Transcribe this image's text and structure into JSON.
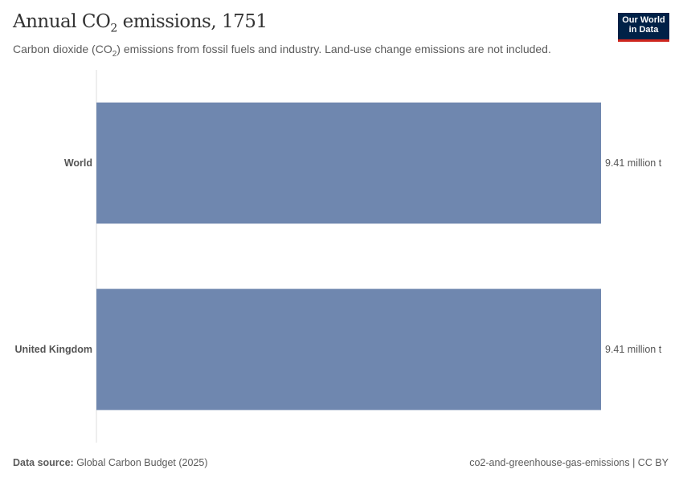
{
  "header": {
    "title_main": "Annual CO",
    "title_sub": "2",
    "title_rest": " emissions, 1751",
    "subtitle_a": "Carbon dioxide (CO",
    "subtitle_sub": "2",
    "subtitle_b": ") emissions from fossil fuels and industry. Land-use change emissions are not included.",
    "logo_line1": "Our World",
    "logo_line2": "in Data"
  },
  "chart_data": {
    "type": "bar",
    "orientation": "horizontal",
    "categories": [
      "World",
      "United Kingdom"
    ],
    "values": [
      9.41,
      9.41
    ],
    "value_labels": [
      "9.41 million t",
      "9.41 million t"
    ],
    "unit": "million t",
    "xlim": [
      0,
      9.41
    ],
    "grid": false,
    "bar_color": "#6f87af"
  },
  "footer": {
    "source_label": "Data source:",
    "source": " Global Carbon Budget (2025)",
    "right": "co2-and-greenhouse-gas-emissions | CC BY"
  }
}
